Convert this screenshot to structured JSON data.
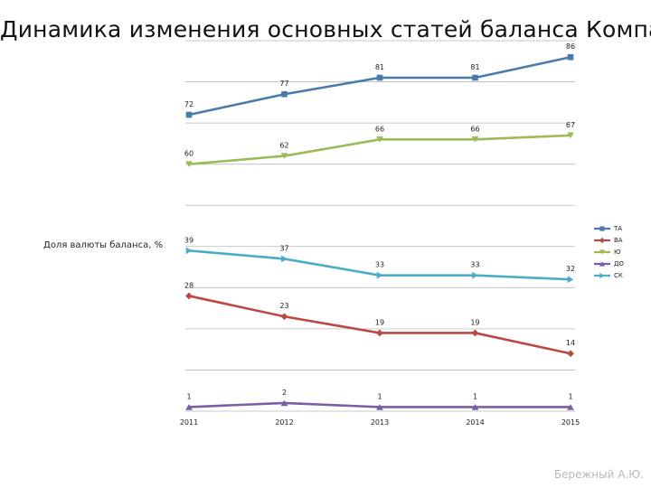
{
  "title": "Динамика изменения основных статей баланса Компании",
  "author": "Бережный А.Ю.",
  "chart_data": {
    "type": "line",
    "title": "Динамика изменения основных статей баланса Компании",
    "ylabel": "Доля валюты баланса, %",
    "xlabel": "",
    "categories": [
      "2011",
      "2012",
      "2013",
      "2014",
      "2015"
    ],
    "ylim": [
      0,
      90
    ],
    "grid": true,
    "legend_position": "right",
    "series": [
      {
        "name": "ТА",
        "color": "#4a7bab",
        "marker": "square",
        "values": [
          72,
          77,
          81,
          81,
          86
        ],
        "labels": [
          "72",
          "77",
          "81",
          "81",
          "86"
        ]
      },
      {
        "name": "ВА",
        "color": "#b94a45",
        "marker": "diamond",
        "values": [
          28,
          23,
          19,
          19,
          14
        ],
        "labels": [
          "28",
          "23",
          "19",
          "19",
          "14"
        ]
      },
      {
        "name": "Ю",
        "color": "#9bbb59",
        "marker": "triangle-down",
        "values": [
          60,
          62,
          66,
          66,
          67
        ],
        "labels": [
          "60",
          "62",
          "66",
          "66",
          "67"
        ]
      },
      {
        "name": "ДО",
        "color": "#7b5ea8",
        "marker": "triangle-up",
        "values": [
          1,
          2,
          1,
          1,
          1
        ],
        "labels": [
          "1",
          "2",
          "1",
          "1",
          "1"
        ]
      },
      {
        "name": "СК",
        "color": "#4bacc6",
        "marker": "triangle-right",
        "values": [
          39,
          37,
          33,
          33,
          32
        ],
        "labels": [
          "39",
          "37",
          "33",
          "33",
          "32"
        ]
      }
    ]
  }
}
